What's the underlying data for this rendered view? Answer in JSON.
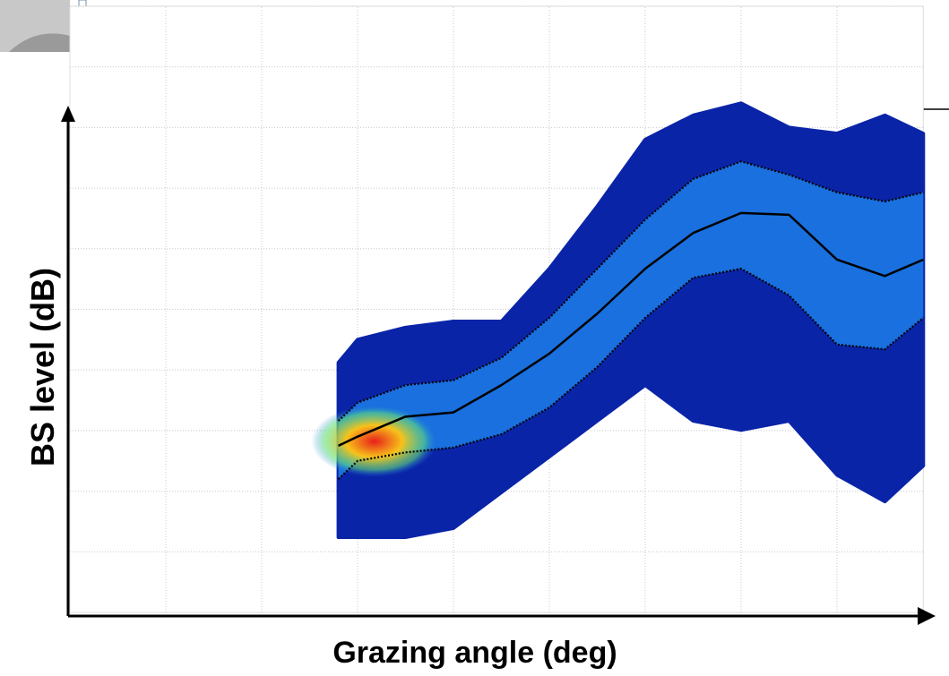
{
  "chart_data": {
    "type": "line",
    "x_label": "Grazing angle (deg)",
    "y_label": "BS level (dB)",
    "xlim": [
      0,
      8.9
    ],
    "ylim": [
      0,
      10
    ],
    "grid": true,
    "x": [
      2.8,
      3.0,
      3.5,
      4.0,
      4.5,
      5.0,
      5.5,
      6.0,
      6.5,
      7.0,
      7.5,
      8.0,
      8.5,
      8.9
    ],
    "envelope": {
      "color": "#0a24a8",
      "upper": [
        4.12,
        4.5,
        4.7,
        4.8,
        4.8,
        5.67,
        6.7,
        7.8,
        8.2,
        8.4,
        8.0,
        7.9,
        8.2,
        7.9
      ],
      "lower": [
        1.24,
        1.24,
        1.24,
        1.39,
        1.98,
        2.57,
        3.16,
        3.75,
        3.16,
        3.01,
        3.16,
        2.27,
        1.83,
        2.42
      ]
    },
    "band_color": "#1c7ee8",
    "series": [
      {
        "color": "#000000",
        "style": "solid",
        "values": [
          2.75,
          2.9,
          3.23,
          3.3,
          3.75,
          4.27,
          4.93,
          5.67,
          6.26,
          6.59,
          6.56,
          5.82,
          5.55,
          5.82
        ]
      },
      {
        "color": "#000000",
        "style": "dotted",
        "values": [
          3.16,
          3.46,
          3.75,
          3.83,
          4.2,
          4.86,
          5.67,
          6.48,
          7.15,
          7.44,
          7.22,
          6.93,
          6.78,
          6.93
        ]
      },
      {
        "color": "#000000",
        "style": "dotted",
        "values": [
          2.2,
          2.5,
          2.64,
          2.72,
          2.94,
          3.38,
          4.05,
          4.86,
          5.52,
          5.67,
          5.23,
          4.42,
          4.34,
          4.86
        ]
      }
    ]
  }
}
